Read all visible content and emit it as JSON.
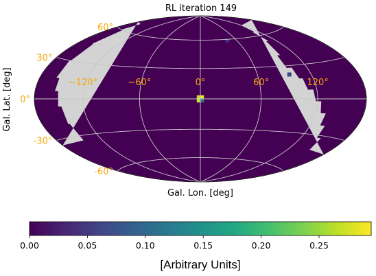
{
  "chart_data": {
    "type": "heatmap",
    "projection": "aitoff/hammer all-sky",
    "title": "RL iteration 149",
    "xlabel": "Gal. Lon. [deg]",
    "ylabel": "Gal. Lat. [deg]",
    "lon_tick_labels": [
      "−120°",
      "−60°",
      "0°",
      "60°",
      "120°"
    ],
    "lat_tick_labels": [
      "60°",
      "30°",
      "0°",
      "-30°",
      "-60°"
    ],
    "lon_ticks": [
      -120,
      -60,
      0,
      60,
      120
    ],
    "lat_ticks": [
      60,
      30,
      0,
      -30,
      -60
    ],
    "grid": true,
    "masked_color": "#d3d3d3",
    "background_value": 0.0,
    "hot_pixels": [
      {
        "lon": 1.5,
        "lat": 1.5,
        "value": 0.29
      },
      {
        "lon": -1.5,
        "lat": 1.5,
        "value": 0.27
      },
      {
        "lon": -1.5,
        "lat": -1.5,
        "value": 0.28
      },
      {
        "lon": 1.5,
        "lat": -1.5,
        "value": 0.11
      },
      {
        "lon": 95,
        "lat": 22,
        "value": 0.06
      },
      {
        "lon": 45,
        "lat": 59,
        "value": 0.04
      }
    ],
    "colorbar": {
      "cmap": "viridis",
      "range": [
        0,
        0.295
      ],
      "ticks": [
        0.0,
        0.05,
        0.1,
        0.15,
        0.2,
        0.25
      ],
      "tick_labels": [
        "0.00",
        "0.05",
        "0.10",
        "0.15",
        "0.20",
        "0.25"
      ],
      "label": "[Arbitrary Units]"
    }
  }
}
